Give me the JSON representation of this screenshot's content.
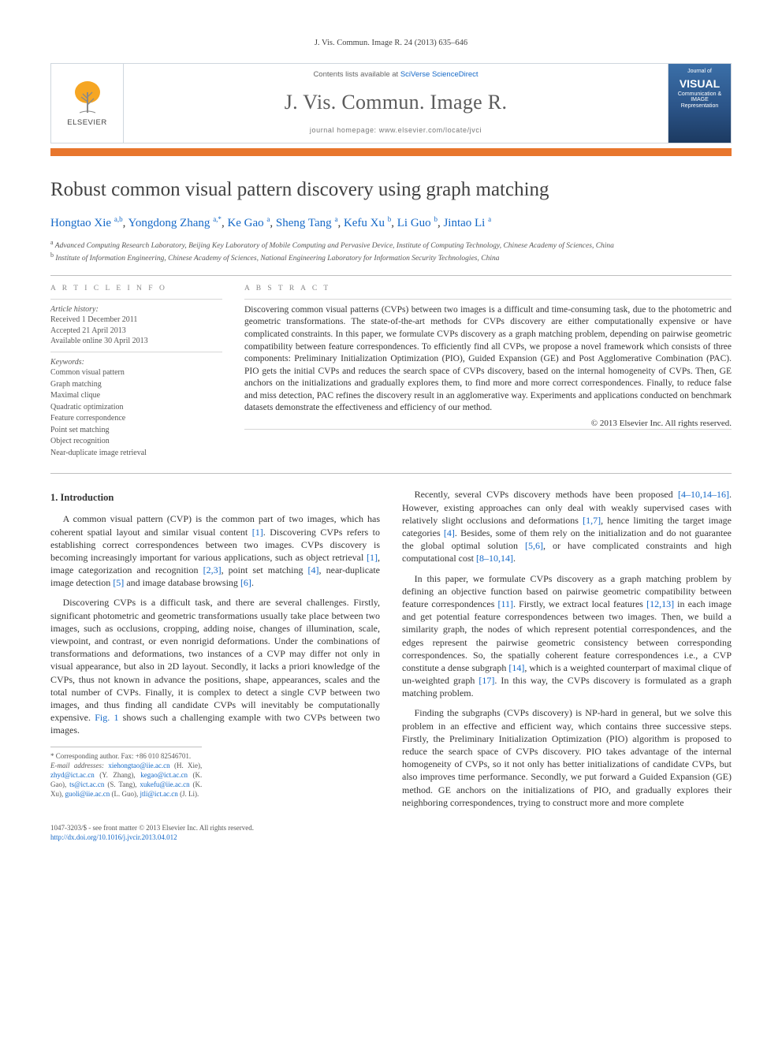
{
  "running_head": "J. Vis. Commun. Image R. 24 (2013) 635–646",
  "masthead": {
    "brand": "ELSEVIER",
    "contents_prefix": "Contents lists available at ",
    "contents_link": "SciVerse ScienceDirect",
    "journal_name": "J. Vis. Commun. Image R.",
    "homepage_label": "journal homepage: www.elsevier.com/locate/jvci",
    "cover_word": "VISUAL",
    "cover_sub": "Communication & IMAGE Representation",
    "colors": {
      "border": "#cfd6de",
      "orange_bar": "#e8762d",
      "link": "#1468c7",
      "tree_fill": "#f6a623",
      "tree_trunk": "#8a8a8a",
      "cover_gradient_top": "#3b6fa8",
      "cover_gradient_bottom": "#1c3a61"
    }
  },
  "article": {
    "title": "Robust common visual pattern discovery using graph matching",
    "authors_html": "Hongtao Xie <sup>a,b</sup>, Yongdong Zhang <sup>a,*</sup>, Ke Gao <sup>a</sup>, Sheng Tang <sup>a</sup>, Kefu Xu <sup>b</sup>, Li Guo <sup>b</sup>, Jintao Li <sup>a</sup>",
    "affiliations": {
      "a": "Advanced Computing Research Laboratory, Beijing Key Laboratory of Mobile Computing and Pervasive Device, Institute of Computing Technology, Chinese Academy of Sciences, China",
      "b": "Institute of Information Engineering, Chinese Academy of Sciences, National Engineering Laboratory for Information Security Technologies, China"
    }
  },
  "info": {
    "heading": "A R T I C L E   I N F O",
    "history_label": "Article history:",
    "received": "Received 1 December 2011",
    "accepted": "Accepted 21 April 2013",
    "online": "Available online 30 April 2013",
    "keywords_label": "Keywords:",
    "keywords": [
      "Common visual pattern",
      "Graph matching",
      "Maximal clique",
      "Quadratic optimization",
      "Feature correspondence",
      "Point set matching",
      "Object recognition",
      "Near-duplicate image retrieval"
    ]
  },
  "abstract": {
    "heading": "A B S T R A C T",
    "text": "Discovering common visual patterns (CVPs) between two images is a difficult and time-consuming task, due to the photometric and geometric transformations. The state-of-the-art methods for CVPs discovery are either computationally expensive or have complicated constraints. In this paper, we formulate CVPs discovery as a graph matching problem, depending on pairwise geometric compatibility between feature correspondences. To efficiently find all CVPs, we propose a novel framework which consists of three components: Preliminary Initialization Optimization (PIO), Guided Expansion (GE) and Post Agglomerative Combination (PAC). PIO gets the initial CVPs and reduces the search space of CVPs discovery, based on the internal homogeneity of CVPs. Then, GE anchors on the initializations and gradually explores them, to find more and more correct correspondences. Finally, to reduce false and miss detection, PAC refines the discovery result in an agglomerative way. Experiments and applications conducted on benchmark datasets demonstrate the effectiveness and efficiency of our method.",
    "copyright": "© 2013 Elsevier Inc. All rights reserved."
  },
  "body": {
    "section1_title": "1. Introduction",
    "p1": "A common visual pattern (CVP) is the common part of two images, which has coherent spatial layout and similar visual content [1]. Discovering CVPs refers to establishing correct correspondences between two images. CVPs discovery is becoming increasingly important for various applications, such as object retrieval [1], image categorization and recognition [2,3], point set matching [4], near-duplicate image detection [5] and image database browsing [6].",
    "p2": "Discovering CVPs is a difficult task, and there are several challenges. Firstly, significant photometric and geometric transformations usually take place between two images, such as occlusions, cropping, adding noise, changes of illumination, scale, viewpoint, and contrast, or even nonrigid deformations. Under the combinations of transformations and deformations, two instances of a CVP may differ not only in visual appearance, but also in 2D layout. Secondly, it lacks a priori knowledge of the CVPs, thus not known in advance the positions, shape, appearances, scales and the total number of CVPs. Finally, it is complex to detect a single CVP between two images, and thus finding all candidate CVPs will inevitably be computationally expensive. Fig. 1 shows such a challenging example with two CVPs between two images.",
    "p3": "Recently, several CVPs discovery methods have been proposed [4–10,14–16]. However, existing approaches can only deal with weakly supervised cases with relatively slight occlusions and deformations [1,7], hence limiting the target image categories [4]. Besides, some of them rely on the initialization and do not guarantee the global optimal solution [5,6], or have complicated constraints and high computational cost [8–10,14].",
    "p4": "In this paper, we formulate CVPs discovery as a graph matching problem by defining an objective function based on pairwise geometric compatibility between feature correspondences [11]. Firstly, we extract local features [12,13] in each image and get potential feature correspondences between two images. Then, we build a similarity graph, the nodes of which represent potential correspondences, and the edges represent the pairwise geometric consistency between corresponding correspondences. So, the spatially coherent feature correspondences i.e., a CVP constitute a dense subgraph [14], which is a weighted counterpart of maximal clique of un-weighted graph [17]. In this way, the CVPs discovery is formulated as a graph matching problem.",
    "p5": "Finding the subgraphs (CVPs discovery) is NP-hard in general, but we solve this problem in an effective and efficient way, which contains three successive steps. Firstly, the Preliminary Initialization Optimization (PIO) algorithm is proposed to reduce the search space of CVPs discovery. PIO takes advantage of the internal homogeneity of CVPs, so it not only has better initializations of candidate CVPs, but also improves time performance. Secondly, we put forward a Guided Expansion (GE) method. GE anchors on the initializations of PIO, and gradually explores their neighboring correspondences, trying to construct more and more complete"
  },
  "footnotes": {
    "corr": "* Corresponding author. Fax: +86 010 82546701.",
    "emails_label": "E-mail addresses:",
    "emails": "xiehongtao@iie.ac.cn (H. Xie), zhyd@ict.ac.cn (Y. Zhang), kegao@ict.ac.cn (K. Gao), ts@ict.ac.cn (S. Tang), xukefu@iie.ac.cn (K. Xu), guoli@iie.ac.cn (L. Guo), jtli@ict.ac.cn (J. Li)."
  },
  "bottom": {
    "line1": "1047-3203/$ - see front matter © 2013 Elsevier Inc. All rights reserved.",
    "doi": "http://dx.doi.org/10.1016/j.jvcir.2013.04.012"
  },
  "refs_linked": [
    "[1]",
    "[2,3]",
    "[4]",
    "[5]",
    "[6]",
    "[4–10,14–16]",
    "[1,7]",
    "[5,6]",
    "[8–10,14]",
    "[11]",
    "[12,13]",
    "[14]",
    "[17]"
  ]
}
